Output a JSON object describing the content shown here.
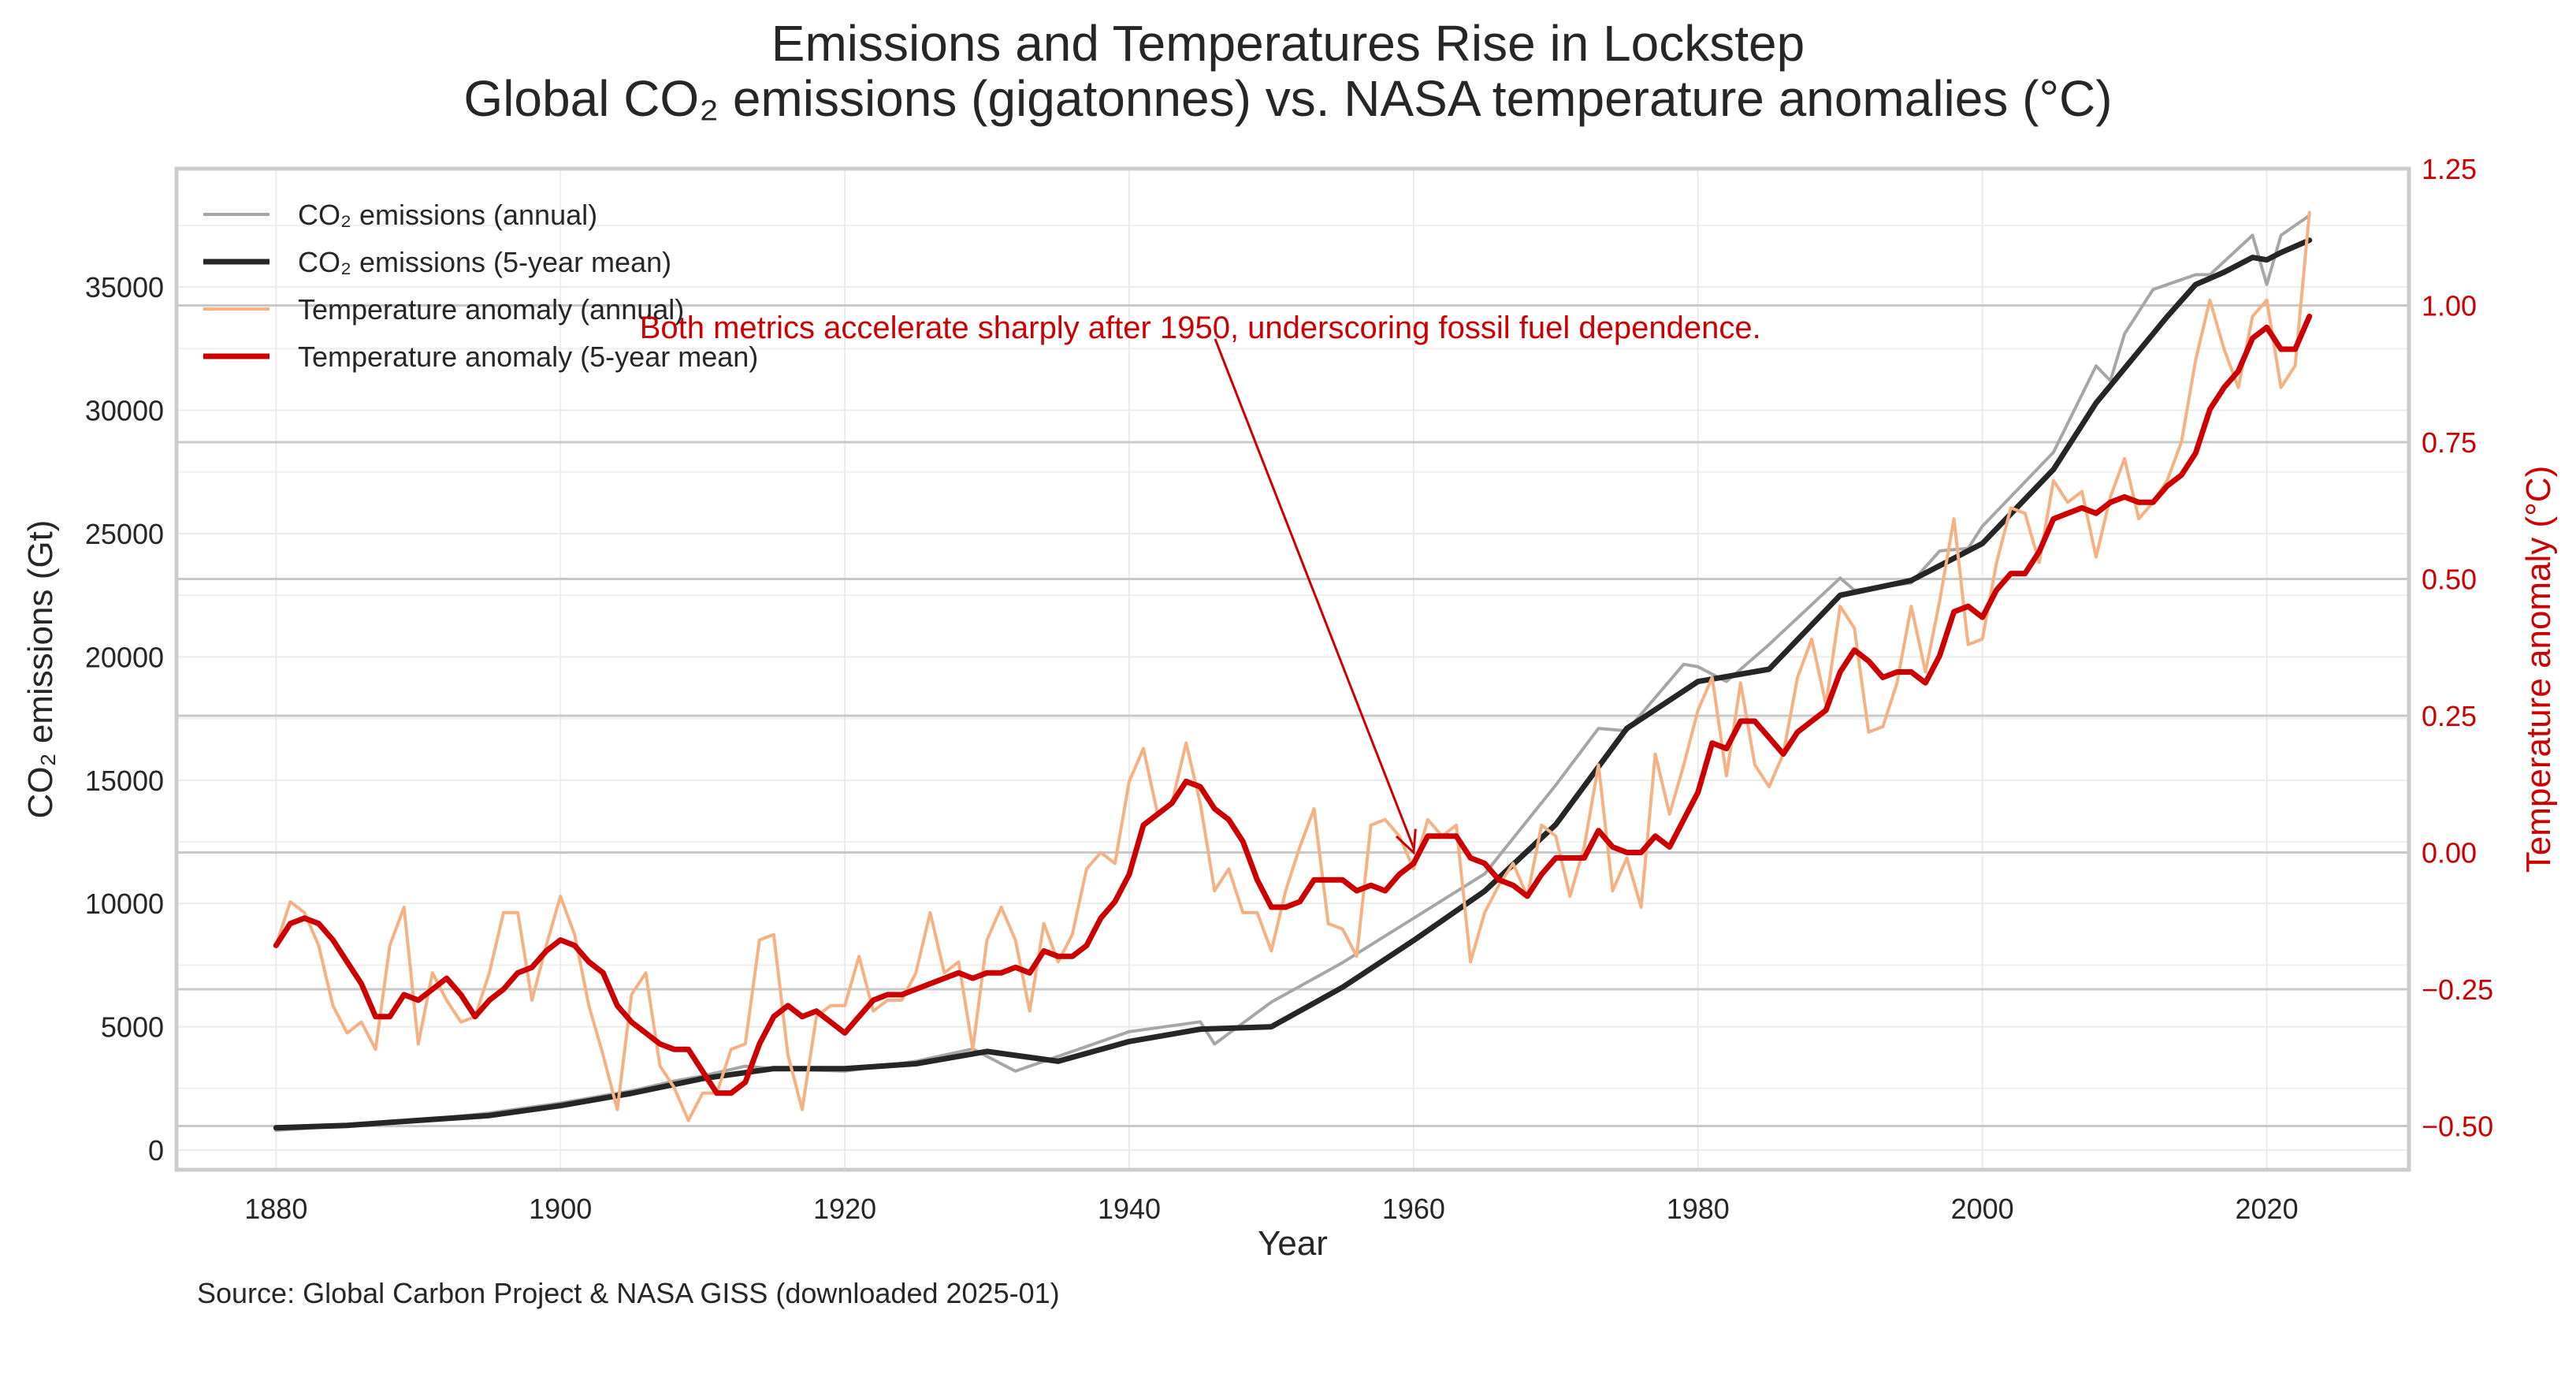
{
  "chart_data": {
    "type": "line",
    "title": "Emissions and Temperatures Rise in Lockstep",
    "subtitle": "Global CO₂ emissions (gigatonnes) vs. NASA temperature anomalies (°C)",
    "xlabel": "Year",
    "ylabel_left": "CO₂ emissions (Gt)",
    "ylabel_right": "Temperature anomaly (°C)",
    "xlim": [
      1873,
      2030
    ],
    "ylim_left": [
      -800,
      39800
    ],
    "ylim_right": [
      -0.58,
      1.25
    ],
    "x_ticks": [
      1880,
      1900,
      1920,
      1940,
      1960,
      1980,
      2000,
      2020
    ],
    "y_left_ticks": [
      0,
      5000,
      10000,
      15000,
      20000,
      25000,
      30000,
      35000
    ],
    "y_right_ticks": [
      -0.5,
      -0.25,
      0.0,
      0.25,
      0.5,
      0.75,
      1.0,
      1.25
    ],
    "y_right_tick_labels": [
      "−0.50",
      "−0.25",
      "0.00",
      "0.25",
      "0.50",
      "0.75",
      "1.00",
      "1.25"
    ],
    "grid": true,
    "legend_position": "top-left",
    "annotation": {
      "text": "Both metrics accelerate sharply after 1950, underscoring fossil fuel dependence.",
      "xy": [
        1960,
        0.0
      ],
      "xytext": [
        1945,
        0.94
      ],
      "color": "#cc0000"
    },
    "source": "Source: Global Carbon Project & NASA GISS (downloaded 2025-01)",
    "series": [
      {
        "name": "CO₂ emissions (annual)",
        "axis": "left",
        "color": "#a6a6a6",
        "x": [
          1880,
          1885,
          1890,
          1895,
          1900,
          1905,
          1908,
          1910,
          1913,
          1915,
          1920,
          1925,
          1929,
          1932,
          1935,
          1940,
          1945,
          1946,
          1950,
          1955,
          1960,
          1965,
          1970,
          1973,
          1975,
          1979,
          1980,
          1982,
          1985,
          1990,
          1991,
          1995,
          1997,
          1999,
          2000,
          2005,
          2008,
          2009,
          2010,
          2012,
          2015,
          2016,
          2019,
          2020,
          2021,
          2023
        ],
        "y": [
          800,
          1000,
          1200,
          1500,
          1900,
          2400,
          2800,
          3000,
          3400,
          3300,
          3200,
          3600,
          4100,
          3200,
          3800,
          4800,
          5200,
          4300,
          6000,
          7600,
          9400,
          11200,
          14800,
          17100,
          17000,
          19700,
          19600,
          19000,
          20500,
          23200,
          22700,
          23000,
          24300,
          24400,
          25300,
          28300,
          31800,
          31200,
          33100,
          34900,
          35500,
          35500,
          37100,
          35100,
          37100,
          37900
        ],
        "linewidth": 4
      },
      {
        "name": "CO₂ emissions (5-year mean)",
        "axis": "left",
        "color": "#262626",
        "x": [
          1880,
          1885,
          1890,
          1895,
          1900,
          1905,
          1910,
          1915,
          1920,
          1925,
          1930,
          1935,
          1940,
          1945,
          1950,
          1955,
          1960,
          1965,
          1970,
          1975,
          1980,
          1985,
          1990,
          1995,
          2000,
          2005,
          2008,
          2010,
          2013,
          2015,
          2017,
          2019,
          2020,
          2021,
          2023
        ],
        "y": [
          900,
          1000,
          1200,
          1400,
          1800,
          2300,
          2900,
          3300,
          3300,
          3500,
          4000,
          3600,
          4400,
          4900,
          5000,
          6600,
          8500,
          10500,
          13200,
          17100,
          19000,
          19500,
          22500,
          23100,
          24600,
          27600,
          30300,
          31700,
          33800,
          35100,
          35600,
          36200,
          36100,
          36400,
          36900
        ],
        "linewidth": 7
      },
      {
        "name": "Temperature anomaly (annual)",
        "axis": "right",
        "color": "#f4b183",
        "x": [
          1880,
          1881,
          1882,
          1883,
          1884,
          1885,
          1886,
          1887,
          1888,
          1889,
          1890,
          1891,
          1892,
          1893,
          1894,
          1895,
          1896,
          1897,
          1898,
          1899,
          1900,
          1901,
          1902,
          1903,
          1904,
          1905,
          1906,
          1907,
          1908,
          1909,
          1910,
          1911,
          1912,
          1913,
          1914,
          1915,
          1916,
          1917,
          1918,
          1919,
          1920,
          1921,
          1922,
          1923,
          1924,
          1925,
          1926,
          1927,
          1928,
          1929,
          1930,
          1931,
          1932,
          1933,
          1934,
          1935,
          1936,
          1937,
          1938,
          1939,
          1940,
          1941,
          1942,
          1943,
          1944,
          1945,
          1946,
          1947,
          1948,
          1949,
          1950,
          1951,
          1952,
          1953,
          1954,
          1955,
          1956,
          1957,
          1958,
          1959,
          1960,
          1961,
          1962,
          1963,
          1964,
          1965,
          1966,
          1967,
          1968,
          1969,
          1970,
          1971,
          1972,
          1973,
          1974,
          1975,
          1976,
          1977,
          1978,
          1979,
          1980,
          1981,
          1982,
          1983,
          1984,
          1985,
          1986,
          1987,
          1988,
          1989,
          1990,
          1991,
          1992,
          1993,
          1994,
          1995,
          1996,
          1997,
          1998,
          1999,
          2000,
          2001,
          2002,
          2003,
          2004,
          2005,
          2006,
          2007,
          2008,
          2009,
          2010,
          2011,
          2012,
          2013,
          2014,
          2015,
          2016,
          2017,
          2018,
          2019,
          2020,
          2021,
          2022,
          2023
        ],
        "y": [
          -0.17,
          -0.09,
          -0.11,
          -0.17,
          -0.28,
          -0.33,
          -0.31,
          -0.36,
          -0.17,
          -0.1,
          -0.35,
          -0.22,
          -0.27,
          -0.31,
          -0.3,
          -0.22,
          -0.11,
          -0.11,
          -0.27,
          -0.17,
          -0.08,
          -0.15,
          -0.28,
          -0.37,
          -0.47,
          -0.26,
          -0.22,
          -0.39,
          -0.43,
          -0.49,
          -0.44,
          -0.44,
          -0.36,
          -0.35,
          -0.16,
          -0.15,
          -0.37,
          -0.47,
          -0.3,
          -0.28,
          -0.28,
          -0.19,
          -0.29,
          -0.27,
          -0.27,
          -0.22,
          -0.11,
          -0.22,
          -0.2,
          -0.36,
          -0.16,
          -0.1,
          -0.16,
          -0.29,
          -0.13,
          -0.2,
          -0.15,
          -0.03,
          0.0,
          -0.02,
          0.13,
          0.19,
          0.07,
          0.09,
          0.2,
          0.09,
          -0.07,
          -0.03,
          -0.11,
          -0.11,
          -0.18,
          -0.07,
          0.01,
          0.08,
          -0.13,
          -0.14,
          -0.19,
          0.05,
          0.06,
          0.03,
          -0.03,
          0.06,
          0.03,
          0.05,
          -0.2,
          -0.11,
          -0.06,
          -0.02,
          -0.08,
          0.05,
          0.03,
          -0.08,
          0.01,
          0.16,
          -0.07,
          -0.01,
          -0.1,
          0.18,
          0.07,
          0.16,
          0.26,
          0.32,
          0.14,
          0.31,
          0.16,
          0.12,
          0.18,
          0.32,
          0.39,
          0.27,
          0.45,
          0.41,
          0.22,
          0.23,
          0.31,
          0.45,
          0.33,
          0.46,
          0.61,
          0.38,
          0.39,
          0.53,
          0.63,
          0.62,
          0.53,
          0.68,
          0.64,
          0.66,
          0.54,
          0.65,
          0.72,
          0.61,
          0.64,
          0.68,
          0.75,
          0.9,
          1.01,
          0.92,
          0.85,
          0.98,
          1.01,
          0.85,
          0.89,
          1.17
        ],
        "linewidth": 4
      },
      {
        "name": "Temperature anomaly (5-year mean)",
        "axis": "right",
        "color": "#cc0000",
        "x": [
          1880,
          1881,
          1882,
          1883,
          1884,
          1885,
          1886,
          1887,
          1888,
          1889,
          1890,
          1891,
          1892,
          1893,
          1894,
          1895,
          1896,
          1897,
          1898,
          1899,
          1900,
          1901,
          1902,
          1903,
          1904,
          1905,
          1906,
          1907,
          1908,
          1909,
          1910,
          1911,
          1912,
          1913,
          1914,
          1915,
          1916,
          1917,
          1918,
          1919,
          1920,
          1921,
          1922,
          1923,
          1924,
          1925,
          1926,
          1927,
          1928,
          1929,
          1930,
          1931,
          1932,
          1933,
          1934,
          1935,
          1936,
          1937,
          1938,
          1939,
          1940,
          1941,
          1942,
          1943,
          1944,
          1945,
          1946,
          1947,
          1948,
          1949,
          1950,
          1951,
          1952,
          1953,
          1954,
          1955,
          1956,
          1957,
          1958,
          1959,
          1960,
          1961,
          1962,
          1963,
          1964,
          1965,
          1966,
          1967,
          1968,
          1969,
          1970,
          1971,
          1972,
          1973,
          1974,
          1975,
          1976,
          1977,
          1978,
          1979,
          1980,
          1981,
          1982,
          1983,
          1984,
          1985,
          1986,
          1987,
          1988,
          1989,
          1990,
          1991,
          1992,
          1993,
          1994,
          1995,
          1996,
          1997,
          1998,
          1999,
          2000,
          2001,
          2002,
          2003,
          2004,
          2005,
          2006,
          2007,
          2008,
          2009,
          2010,
          2011,
          2012,
          2013,
          2014,
          2015,
          2016,
          2017,
          2018,
          2019,
          2020,
          2021,
          2022,
          2023
        ],
        "y": [
          -0.17,
          -0.13,
          -0.12,
          -0.13,
          -0.16,
          -0.2,
          -0.24,
          -0.3,
          -0.3,
          -0.26,
          -0.27,
          -0.25,
          -0.23,
          -0.26,
          -0.3,
          -0.27,
          -0.25,
          -0.22,
          -0.21,
          -0.18,
          -0.16,
          -0.17,
          -0.2,
          -0.22,
          -0.28,
          -0.31,
          -0.33,
          -0.35,
          -0.36,
          -0.36,
          -0.4,
          -0.44,
          -0.44,
          -0.42,
          -0.35,
          -0.3,
          -0.28,
          -0.3,
          -0.29,
          -0.31,
          -0.33,
          -0.3,
          -0.27,
          -0.26,
          -0.26,
          -0.25,
          -0.24,
          -0.23,
          -0.22,
          -0.23,
          -0.22,
          -0.22,
          -0.21,
          -0.22,
          -0.18,
          -0.19,
          -0.19,
          -0.17,
          -0.12,
          -0.09,
          -0.04,
          0.05,
          0.07,
          0.09,
          0.13,
          0.12,
          0.08,
          0.06,
          0.02,
          -0.05,
          -0.1,
          -0.1,
          -0.09,
          -0.05,
          -0.05,
          -0.05,
          -0.07,
          -0.06,
          -0.07,
          -0.04,
          -0.02,
          0.03,
          0.03,
          0.03,
          -0.01,
          -0.02,
          -0.05,
          -0.06,
          -0.08,
          -0.04,
          -0.01,
          -0.01,
          -0.01,
          0.04,
          0.01,
          0.0,
          0.0,
          0.03,
          0.01,
          0.06,
          0.11,
          0.2,
          0.19,
          0.24,
          0.24,
          0.21,
          0.18,
          0.22,
          0.24,
          0.26,
          0.33,
          0.37,
          0.35,
          0.32,
          0.33,
          0.33,
          0.31,
          0.36,
          0.44,
          0.45,
          0.43,
          0.48,
          0.51,
          0.51,
          0.55,
          0.61,
          0.62,
          0.63,
          0.62,
          0.64,
          0.65,
          0.64,
          0.64,
          0.67,
          0.69,
          0.73,
          0.81,
          0.85,
          0.88,
          0.94,
          0.96,
          0.92,
          0.92,
          0.98
        ],
        "linewidth": 7
      }
    ]
  }
}
